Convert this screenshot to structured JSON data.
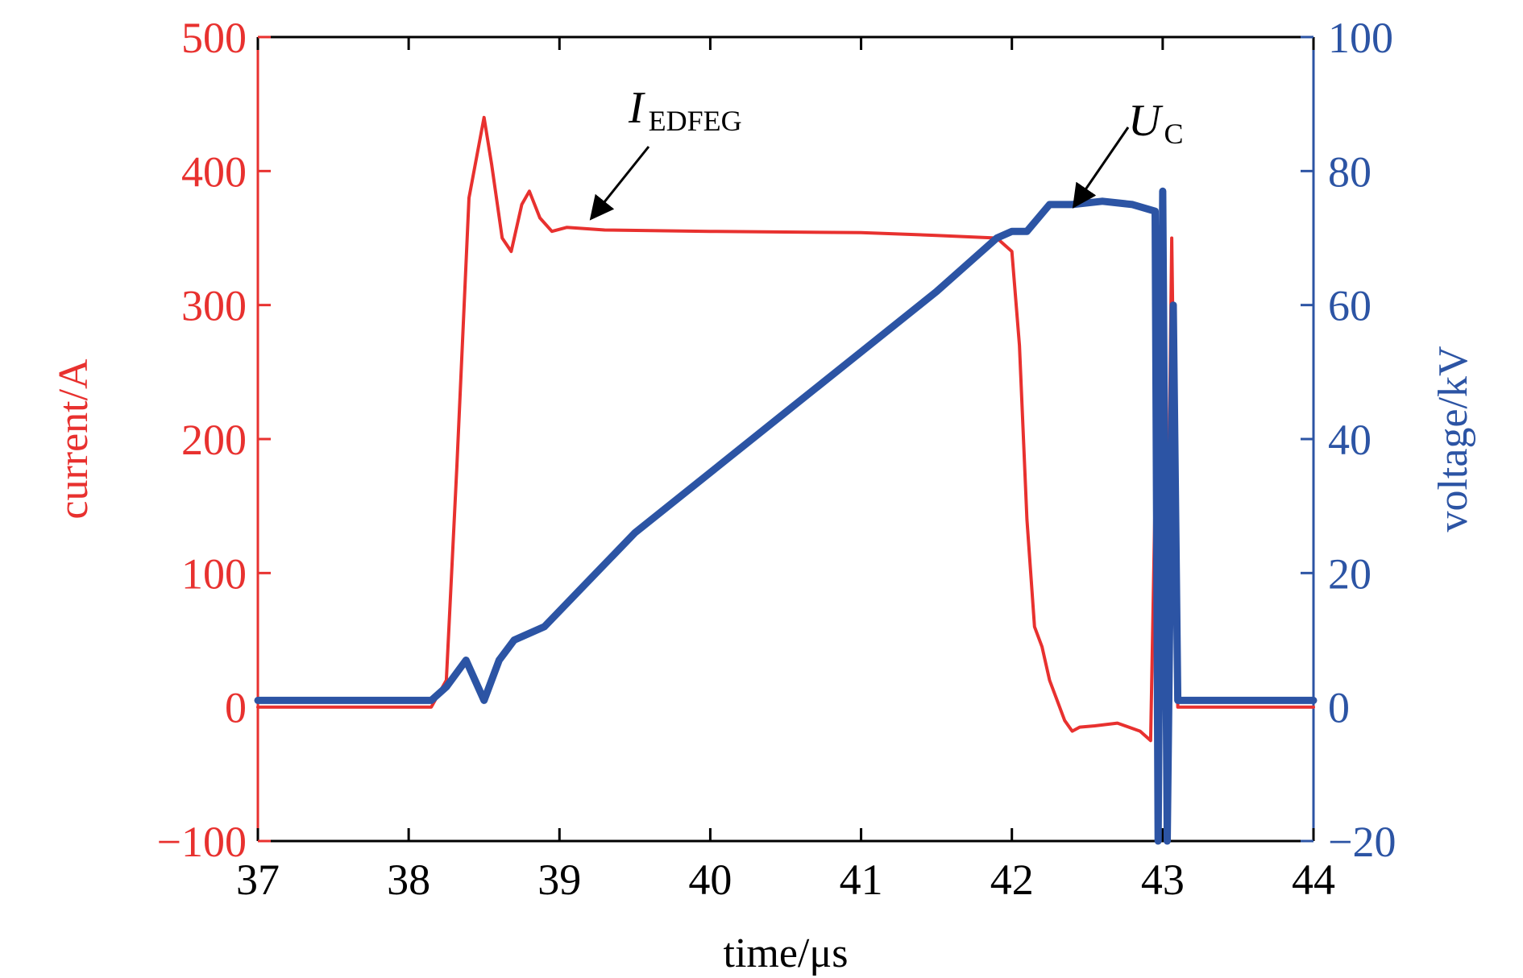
{
  "chart_data": {
    "type": "line",
    "xlabel": "time/μs",
    "xlim": [
      37,
      44
    ],
    "xticks": [
      37,
      38,
      39,
      40,
      41,
      42,
      43,
      44
    ],
    "left_axis": {
      "label": "current/A",
      "range": [
        -100,
        500
      ],
      "ticks": [
        -100,
        0,
        100,
        200,
        300,
        400,
        500
      ],
      "color": "#e8312f"
    },
    "right_axis": {
      "label": "voltage/kV",
      "range": [
        -20,
        100
      ],
      "ticks": [
        -20,
        0,
        20,
        40,
        60,
        80,
        100
      ],
      "color": "#2c54a4"
    },
    "grid": false,
    "annotations": [
      {
        "text_main": "I",
        "text_sub": "EDFEG",
        "points_to": {
          "x": 39.22,
          "y_current": 366
        }
      },
      {
        "text_main": "U",
        "text_sub": "C",
        "points_to": {
          "x": 42.42,
          "y_voltage": 75
        }
      }
    ],
    "series": [
      {
        "name": "I_EDFEG",
        "axis": "left",
        "color": "#e8312f",
        "x": [
          37.0,
          38.15,
          38.25,
          38.32,
          38.4,
          38.5,
          38.55,
          38.62,
          38.68,
          38.75,
          38.8,
          38.87,
          38.95,
          39.05,
          39.3,
          40.0,
          41.0,
          41.5,
          41.9,
          42.0,
          42.05,
          42.1,
          42.15,
          42.2,
          42.25,
          42.3,
          42.35,
          42.4,
          42.45,
          42.55,
          42.7,
          42.85,
          42.92,
          42.98,
          43.02,
          43.06,
          43.1,
          44.0
        ],
        "y": [
          0,
          0,
          20,
          180,
          380,
          440,
          405,
          350,
          340,
          375,
          385,
          365,
          355,
          358,
          356,
          355,
          354,
          352,
          350,
          340,
          270,
          140,
          60,
          45,
          20,
          5,
          -10,
          -18,
          -15,
          -14,
          -12,
          -18,
          -25,
          340,
          -30,
          350,
          0,
          0
        ]
      },
      {
        "name": "U_C",
        "axis": "right",
        "color": "#2c54a4",
        "x": [
          37.0,
          38.15,
          38.25,
          38.38,
          38.5,
          38.6,
          38.7,
          38.9,
          39.2,
          39.5,
          40.0,
          40.5,
          41.0,
          41.5,
          41.9,
          42.0,
          42.1,
          42.25,
          42.4,
          42.6,
          42.8,
          42.95,
          42.97,
          43.0,
          43.03,
          43.07,
          43.1,
          44.0
        ],
        "y": [
          1,
          1,
          3,
          7,
          1,
          7,
          10,
          12,
          19,
          26,
          35,
          44,
          53,
          62,
          70,
          71,
          71,
          75,
          75,
          75.5,
          75,
          74,
          -20,
          77,
          -20,
          60,
          1,
          1
        ]
      }
    ]
  }
}
